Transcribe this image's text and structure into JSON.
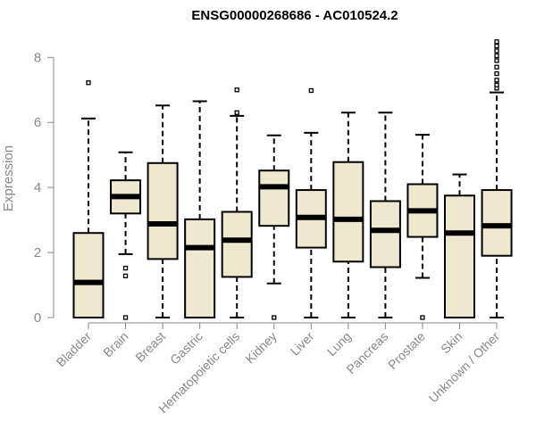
{
  "chart_data": {
    "type": "boxplot",
    "title": "ENSG00000268686 - AC010524.2",
    "ylabel": "Expression",
    "ylim": [
      0,
      8.6
    ],
    "yticks": [
      0,
      2,
      4,
      6,
      8
    ],
    "grid": false,
    "box_fill": "#efe8d0",
    "categories": [
      "Bladder",
      "Brain",
      "Breast",
      "Gastric",
      "Hematopoietic cells",
      "Kidney",
      "Liver",
      "Lung",
      "Pancreas",
      "Prostate",
      "Skin",
      "Unknown / Other"
    ],
    "boxes": [
      {
        "min": 0,
        "q1": 0,
        "median": 1.08,
        "q3": 2.6,
        "max": 6.12,
        "outliers": [
          7.22
        ]
      },
      {
        "min": 1.95,
        "q1": 3.2,
        "median": 3.72,
        "q3": 4.22,
        "max": 5.08,
        "outliers": [
          1.52,
          1.28,
          0
        ]
      },
      {
        "min": 0,
        "q1": 1.8,
        "median": 2.88,
        "q3": 4.75,
        "max": 6.52,
        "outliers": []
      },
      {
        "min": 0,
        "q1": 0,
        "median": 2.15,
        "q3": 3.02,
        "max": 6.65,
        "outliers": []
      },
      {
        "min": 0,
        "q1": 1.25,
        "median": 2.38,
        "q3": 3.25,
        "max": 6.2,
        "outliers": [
          6.3,
          7.0
        ]
      },
      {
        "min": 1.05,
        "q1": 2.82,
        "median": 4.02,
        "q3": 4.52,
        "max": 5.6,
        "outliers": [
          0
        ]
      },
      {
        "min": 0,
        "q1": 2.15,
        "median": 3.08,
        "q3": 3.92,
        "max": 5.68,
        "outliers": [
          6.98
        ]
      },
      {
        "min": 0,
        "q1": 1.72,
        "median": 3.02,
        "q3": 4.78,
        "max": 6.3,
        "outliers": []
      },
      {
        "min": 0,
        "q1": 1.55,
        "median": 2.68,
        "q3": 3.58,
        "max": 6.3,
        "outliers": []
      },
      {
        "min": 1.22,
        "q1": 2.48,
        "median": 3.28,
        "q3": 4.1,
        "max": 5.62,
        "outliers": [
          0
        ]
      },
      {
        "min": 0,
        "q1": 0,
        "median": 2.6,
        "q3": 3.75,
        "max": 4.4,
        "outliers": []
      },
      {
        "min": 0,
        "q1": 1.9,
        "median": 2.82,
        "q3": 3.92,
        "max": 6.92,
        "outliers": [
          7.05,
          7.15,
          7.3,
          7.5,
          7.7,
          7.9,
          8.05,
          8.2,
          8.35,
          8.48
        ]
      }
    ]
  }
}
